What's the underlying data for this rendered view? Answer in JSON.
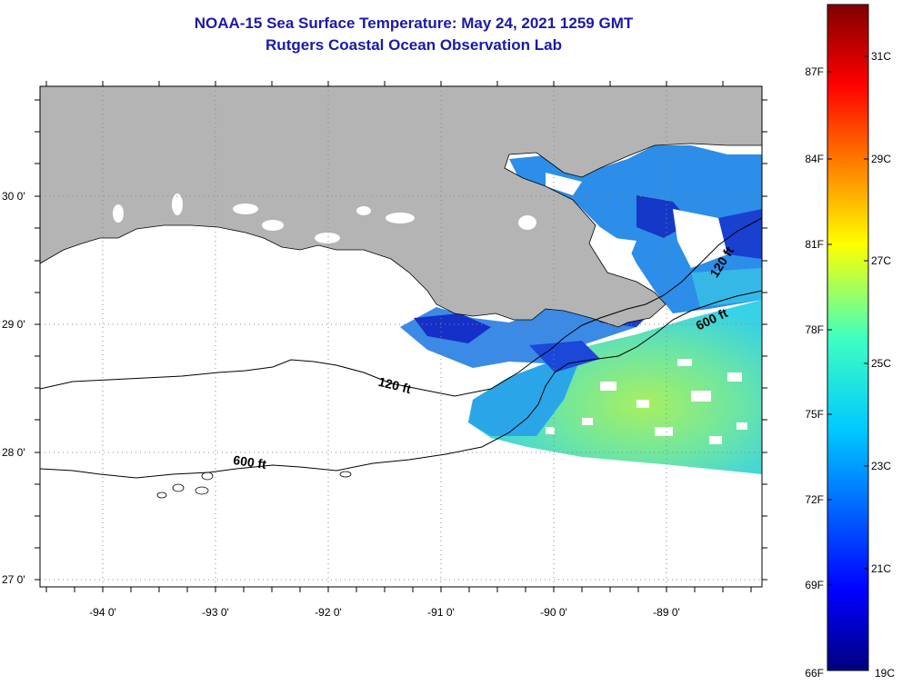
{
  "title": {
    "line1": "NOAA-15 Sea Surface Temperature:  May 24, 2021 1259 GMT",
    "line2": "Rutgers Coastal Ocean Observation Lab"
  },
  "map": {
    "lat_labels": [
      "30 0'",
      "29 0'",
      "28 0'",
      "27 0'"
    ],
    "lon_labels": [
      "-94 0'",
      "-93 0'",
      "-92 0'",
      "-91 0'",
      "-90 0'",
      "-89 0'"
    ],
    "contours": [
      {
        "name": "120 ft",
        "label": "120 ft"
      },
      {
        "name": "600 ft",
        "label": "600 ft"
      }
    ],
    "colors": {
      "land": "#b4b4b4",
      "nodata": "#ffffff",
      "contour": "#000000"
    }
  },
  "colorbar": {
    "celsius_labels": [
      "31C",
      "29C",
      "27C",
      "25C",
      "23C",
      "21C",
      "19C"
    ],
    "fahrenheit_labels": [
      "87F",
      "84F",
      "81F",
      "78F",
      "75F",
      "72F",
      "69F",
      "66F"
    ],
    "colormap": "jet"
  }
}
